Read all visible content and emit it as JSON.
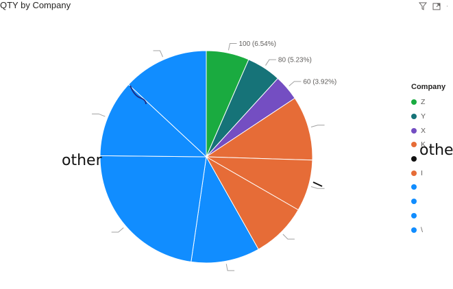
{
  "title": "QTY by Company",
  "legend": {
    "title": "Company",
    "items": [
      {
        "label": "Z",
        "color": "#1aab40"
      },
      {
        "label": "Y",
        "color": "#167378"
      },
      {
        "label": "X",
        "color": "#744ec2"
      },
      {
        "label": "K",
        "color": "#e66c37"
      },
      {
        "label": "",
        "color": "#111111"
      },
      {
        "label": "I",
        "color": "#e66c37"
      },
      {
        "label": "",
        "color": "#118dff"
      },
      {
        "label": "",
        "color": "#118dff"
      },
      {
        "label": "",
        "color": "#118dff"
      },
      {
        "label": "\\",
        "color": "#118dff"
      }
    ]
  },
  "annotations": {
    "left": "other",
    "right": "other"
  },
  "icons": [
    "filter-icon",
    "focus-mode-icon",
    "more-options-icon"
  ],
  "chart_data": {
    "type": "pie",
    "title": "QTY by Company",
    "legend_title": "Company",
    "legend_position": "right",
    "slices": [
      {
        "name": "Z",
        "value": 100,
        "label": "100 (6.54%)",
        "color": "#1aab40"
      },
      {
        "name": "Y",
        "value": 80,
        "label": "80 (5.23%)",
        "color": "#167378"
      },
      {
        "name": "X",
        "value": 60,
        "label": "60 (3.92%)",
        "color": "#744ec2"
      },
      {
        "name": "K",
        "value": 150,
        "label": "",
        "color": "#e66c37"
      },
      {
        "name": "",
        "value": 120,
        "label": "",
        "color": "#e66c37"
      },
      {
        "name": "I",
        "value": 130,
        "label": "",
        "color": "#e66c37"
      },
      {
        "name": "",
        "value": 160,
        "label": "",
        "color": "#118dff"
      },
      {
        "name": "",
        "value": 350,
        "label": "",
        "color": "#118dff"
      },
      {
        "name": "",
        "value": 180,
        "label": "",
        "color": "#118dff"
      },
      {
        "name": "",
        "value": 200,
        "label": "",
        "color": "#118dff"
      }
    ]
  }
}
